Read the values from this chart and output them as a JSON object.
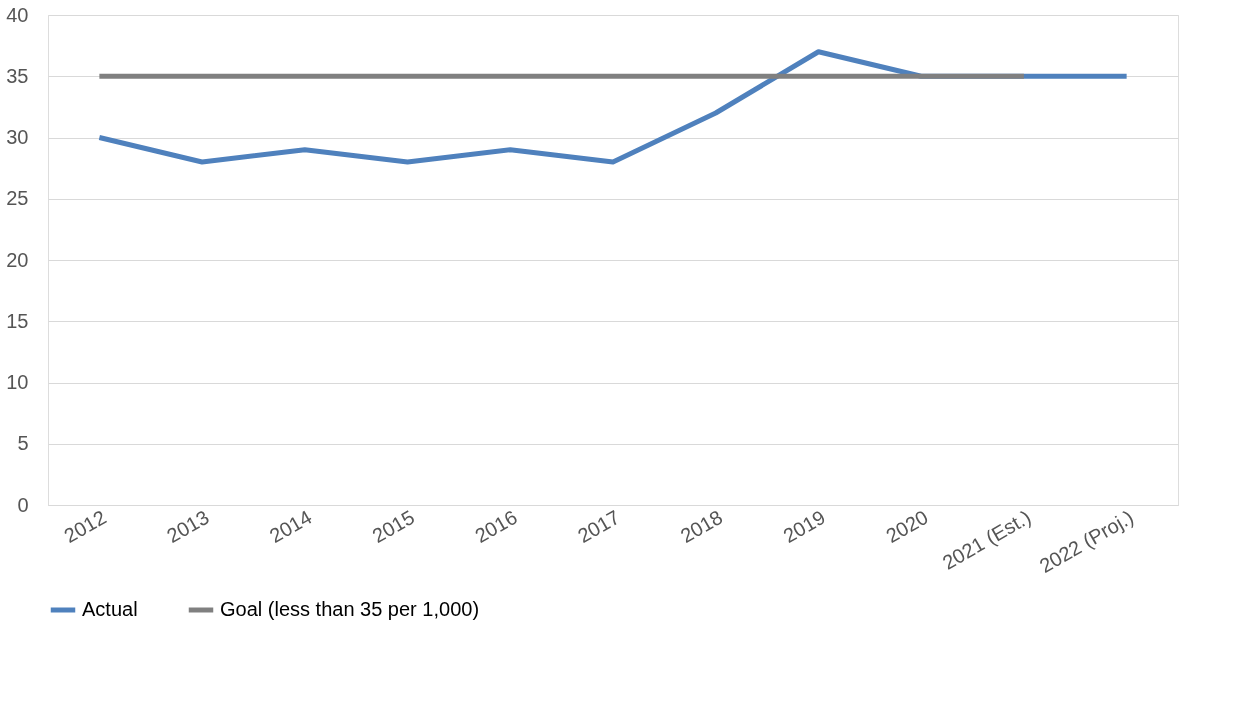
{
  "chart_data": {
    "type": "line",
    "categories": [
      "2012",
      "2013",
      "2014",
      "2015",
      "2016",
      "2017",
      "2018",
      "2019",
      "2020",
      "2021 (Est.)",
      "2022 (Proj.)"
    ],
    "series": [
      {
        "name": "Actual",
        "color": "#4f81bd",
        "values": [
          30,
          28,
          29,
          28,
          29,
          28,
          32,
          37,
          35,
          35,
          35
        ]
      },
      {
        "name": "Goal (less than 35 per 1,000)",
        "color": "#808080",
        "values": [
          35,
          35,
          35,
          35,
          35,
          35,
          35,
          35,
          35,
          35,
          null
        ]
      }
    ],
    "ylim": [
      0,
      40
    ],
    "yticks": [
      0,
      5,
      10,
      15,
      20,
      25,
      30,
      35,
      40
    ],
    "grid": "y",
    "legend": "bottom",
    "marker": "none",
    "line_style": "solid"
  }
}
